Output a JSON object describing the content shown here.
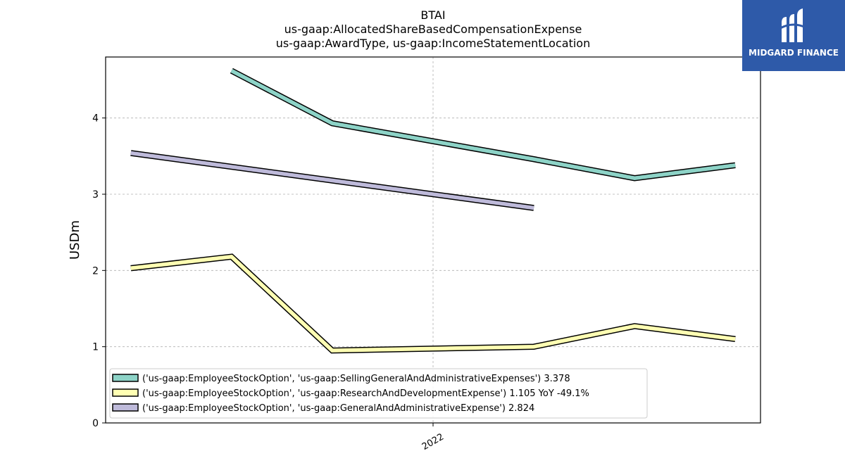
{
  "chart_data": {
    "type": "line",
    "title_lines": [
      "BTAI",
      "us-gaap:AllocatedShareBasedCompensationExpense",
      "us-gaap:AwardType, us-gaap:IncomeStatementLocation"
    ],
    "ylabel": "USDm",
    "xlabel": "",
    "ylim": [
      0,
      4.8
    ],
    "yticks": [
      0,
      1,
      2,
      3,
      4
    ],
    "x_index_range": [
      -0.25,
      6.25
    ],
    "xticks": [
      {
        "index": 3.0,
        "label": "2022"
      }
    ],
    "grid": true,
    "legend_position": "lower-left",
    "series": [
      {
        "name": "('us-gaap:EmployeeStockOption', 'us-gaap:SellingGeneralAndAdministrativeExpenses') 3.378",
        "color": "#8dd3c7",
        "points": [
          [
            1,
            4.62
          ],
          [
            2,
            3.93
          ],
          [
            4,
            3.46
          ],
          [
            5,
            3.21
          ],
          [
            6,
            3.38
          ]
        ]
      },
      {
        "name": "('us-gaap:EmployeeStockOption', 'us-gaap:ResearchAndDevelopmentExpense') 1.105 YoY -49.1%",
        "color": "#ffffb3",
        "points": [
          [
            0,
            2.03
          ],
          [
            1,
            2.18
          ],
          [
            2,
            0.95
          ],
          [
            4,
            1.0
          ],
          [
            5,
            1.27
          ],
          [
            6,
            1.1
          ]
        ]
      },
      {
        "name": "('us-gaap:EmployeeStockOption', 'us-gaap:GeneralAndAdministrativeExpense') 2.824",
        "color": "#bebada",
        "points": [
          [
            0,
            3.54
          ],
          [
            4,
            2.82
          ]
        ]
      }
    ]
  },
  "logo": {
    "text": "MIDGARD FINANCE",
    "background": "#2e5aa9"
  }
}
